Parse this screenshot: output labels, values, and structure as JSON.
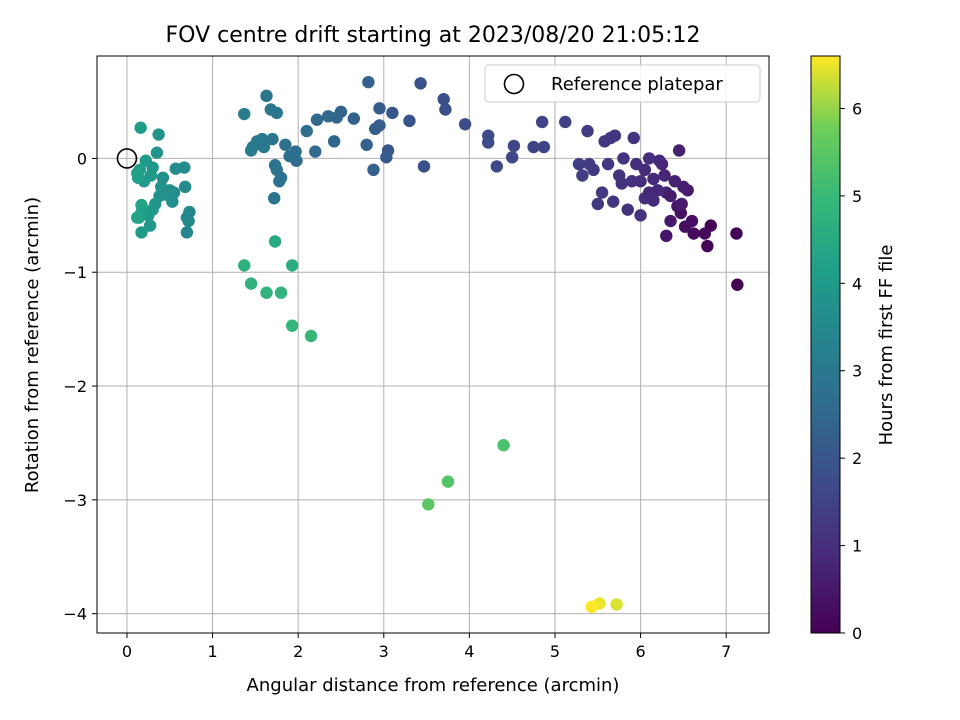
{
  "chart_data": {
    "type": "scatter",
    "title": "FOV centre drift starting at 2023/08/20 21:05:12",
    "xlabel": "Angular distance from reference (arcmin)",
    "ylabel": "Rotation from reference (arcmin)",
    "xlim": [
      -0.35,
      7.5
    ],
    "ylim": [
      -4.17,
      0.9
    ],
    "xticks": [
      0,
      1,
      2,
      3,
      4,
      5,
      6,
      7
    ],
    "yticks": [
      -4,
      -3,
      -2,
      -1,
      0
    ],
    "grid": true,
    "legend": {
      "position": "top-right",
      "entries": [
        "Reference platepar"
      ]
    },
    "reference_point": {
      "x": 0,
      "y": 0
    },
    "colorbar": {
      "label": "Hours from first FF file",
      "colormap": "viridis",
      "range": [
        0,
        6.6
      ],
      "ticks": [
        0,
        1,
        2,
        3,
        4,
        5,
        6
      ]
    },
    "series": [
      {
        "values": [
          [
            7.13,
            -1.11,
            0.0
          ],
          [
            7.12,
            -0.66,
            0.05
          ],
          [
            6.82,
            -0.59,
            0.08
          ],
          [
            6.78,
            -0.77,
            0.1
          ],
          [
            6.75,
            -0.66,
            0.15
          ],
          [
            6.62,
            -0.66,
            0.2
          ],
          [
            6.6,
            -0.55,
            0.25
          ],
          [
            6.52,
            -0.6,
            0.3
          ],
          [
            6.47,
            -0.48,
            0.35
          ],
          [
            6.43,
            -0.42,
            0.4
          ],
          [
            6.3,
            -0.68,
            0.45
          ],
          [
            6.35,
            -0.55,
            0.5
          ],
          [
            6.55,
            -0.28,
            0.55
          ],
          [
            6.5,
            -0.25,
            0.6
          ],
          [
            6.45,
            0.07,
            0.65
          ],
          [
            6.4,
            -0.2,
            0.7
          ],
          [
            6.3,
            -0.3,
            0.75
          ],
          [
            6.28,
            -0.15,
            0.78
          ],
          [
            6.25,
            -0.05,
            0.8
          ],
          [
            6.2,
            -0.28,
            0.85
          ],
          [
            6.15,
            -0.37,
            0.88
          ],
          [
            6.1,
            -0.3,
            0.9
          ],
          [
            6.05,
            -0.1,
            0.95
          ],
          [
            6.0,
            -0.2,
            1.0
          ],
          [
            5.95,
            -0.05,
            1.02
          ],
          [
            5.9,
            -0.2,
            1.05
          ],
          [
            5.85,
            -0.45,
            1.08
          ],
          [
            5.8,
            0.0,
            1.1
          ],
          [
            5.75,
            -0.15,
            1.12
          ],
          [
            5.7,
            0.2,
            1.15
          ],
          [
            5.65,
            0.18,
            1.18
          ],
          [
            5.62,
            -0.05,
            1.2
          ],
          [
            5.58,
            0.15,
            1.22
          ],
          [
            5.55,
            -0.3,
            1.25
          ],
          [
            5.5,
            -0.4,
            1.28
          ],
          [
            5.45,
            -0.1,
            1.3
          ],
          [
            5.4,
            -0.05,
            1.32
          ],
          [
            5.38,
            0.24,
            1.35
          ],
          [
            5.32,
            -0.15,
            1.38
          ],
          [
            5.28,
            -0.05,
            1.4
          ],
          [
            6.0,
            -0.5,
            1.05
          ],
          [
            5.92,
            0.18,
            1.12
          ],
          [
            6.1,
            0.0,
            1.0
          ],
          [
            6.22,
            -0.02,
            0.82
          ],
          [
            6.35,
            -0.33,
            0.6
          ],
          [
            5.78,
            -0.22,
            1.08
          ],
          [
            5.68,
            -0.38,
            1.15
          ],
          [
            6.05,
            -0.35,
            0.95
          ],
          [
            6.15,
            -0.18,
            0.88
          ],
          [
            6.48,
            -0.4,
            0.52
          ],
          [
            5.12,
            0.32,
            1.45
          ],
          [
            4.87,
            0.1,
            1.5
          ],
          [
            4.85,
            0.32,
            1.52
          ],
          [
            4.75,
            0.1,
            1.55
          ],
          [
            4.52,
            0.11,
            1.6
          ],
          [
            4.5,
            0.01,
            1.62
          ],
          [
            4.32,
            -0.07,
            1.65
          ],
          [
            4.22,
            0.2,
            1.68
          ],
          [
            4.22,
            0.14,
            1.7
          ],
          [
            3.95,
            0.3,
            1.75
          ],
          [
            3.72,
            0.43,
            1.8
          ],
          [
            3.7,
            0.52,
            1.82
          ],
          [
            3.47,
            -0.07,
            1.85
          ],
          [
            3.43,
            0.66,
            1.9
          ],
          [
            3.3,
            0.33,
            1.95
          ],
          [
            3.1,
            0.4,
            2.0
          ],
          [
            3.05,
            0.07,
            2.05
          ],
          [
            3.03,
            0.01,
            2.1
          ],
          [
            2.95,
            0.44,
            2.15
          ],
          [
            2.95,
            0.29,
            2.18
          ],
          [
            2.9,
            0.26,
            2.2
          ],
          [
            2.88,
            -0.1,
            2.25
          ],
          [
            2.82,
            0.67,
            2.28
          ],
          [
            2.8,
            0.12,
            2.3
          ],
          [
            2.65,
            0.35,
            2.35
          ],
          [
            2.5,
            0.41,
            2.4
          ],
          [
            2.45,
            0.36,
            2.42
          ],
          [
            2.42,
            0.15,
            2.45
          ],
          [
            2.35,
            0.37,
            2.48
          ],
          [
            2.22,
            0.34,
            2.5
          ],
          [
            2.2,
            0.06,
            2.55
          ],
          [
            2.1,
            0.24,
            2.6
          ],
          [
            1.98,
            -0.02,
            2.65
          ],
          [
            1.97,
            0.06,
            2.68
          ],
          [
            1.9,
            0.02,
            2.7
          ],
          [
            1.85,
            0.12,
            2.72
          ],
          [
            1.8,
            -0.17,
            2.75
          ],
          [
            1.78,
            -0.2,
            2.78
          ],
          [
            1.75,
            -0.1,
            2.8
          ],
          [
            1.73,
            -0.06,
            2.82
          ],
          [
            1.72,
            -0.35,
            2.85
          ],
          [
            1.75,
            0.4,
            2.88
          ],
          [
            1.7,
            0.17,
            2.9
          ],
          [
            1.68,
            0.43,
            2.92
          ],
          [
            1.63,
            0.55,
            2.95
          ],
          [
            1.6,
            0.1,
            2.98
          ],
          [
            1.58,
            0.17,
            3.0
          ],
          [
            1.52,
            0.15,
            3.02
          ],
          [
            1.47,
            0.1,
            3.05
          ],
          [
            1.45,
            0.07,
            3.08
          ],
          [
            1.37,
            0.39,
            3.12
          ],
          [
            0.7,
            -0.65,
            3.4
          ],
          [
            0.7,
            -0.52,
            3.45
          ],
          [
            0.73,
            -0.47,
            3.48
          ],
          [
            0.72,
            -0.55,
            3.5
          ],
          [
            0.68,
            -0.25,
            3.55
          ],
          [
            0.67,
            -0.08,
            3.58
          ],
          [
            0.57,
            -0.09,
            3.6
          ],
          [
            0.55,
            -0.3,
            3.62
          ],
          [
            0.53,
            -0.38,
            3.65
          ],
          [
            0.5,
            -0.28,
            3.68
          ],
          [
            0.47,
            -0.32,
            3.7
          ],
          [
            0.42,
            -0.17,
            3.72
          ],
          [
            0.4,
            -0.25,
            3.75
          ],
          [
            0.38,
            -0.33,
            3.78
          ],
          [
            0.37,
            0.21,
            3.8
          ],
          [
            0.35,
            0.05,
            3.82
          ],
          [
            0.33,
            -0.4,
            3.85
          ],
          [
            0.3,
            -0.45,
            3.88
          ],
          [
            0.3,
            -0.08,
            3.9
          ],
          [
            0.28,
            -0.15,
            3.92
          ],
          [
            0.27,
            -0.59,
            3.95
          ],
          [
            0.25,
            -0.5,
            3.98
          ],
          [
            0.22,
            -0.02,
            4.0
          ],
          [
            0.2,
            -0.2,
            4.02
          ],
          [
            0.18,
            -0.45,
            4.05
          ],
          [
            0.17,
            -0.65,
            4.08
          ],
          [
            0.16,
            0.27,
            4.1
          ],
          [
            0.15,
            -0.5,
            4.12
          ],
          [
            0.15,
            -0.1,
            4.15
          ],
          [
            0.13,
            -0.17,
            4.18
          ],
          [
            0.12,
            -0.13,
            4.2
          ],
          [
            0.14,
            -0.52,
            4.22
          ],
          [
            0.17,
            -0.41,
            4.25
          ],
          [
            0.12,
            -0.52,
            4.28
          ],
          [
            1.73,
            -0.73,
            4.5
          ],
          [
            1.93,
            -0.94,
            4.6
          ],
          [
            1.37,
            -0.94,
            4.7
          ],
          [
            1.45,
            -1.1,
            4.75
          ],
          [
            1.63,
            -1.18,
            4.8
          ],
          [
            1.8,
            -1.18,
            4.85
          ],
          [
            1.93,
            -1.47,
            4.9
          ],
          [
            2.15,
            -1.56,
            4.95
          ],
          [
            4.4,
            -2.52,
            5.3
          ],
          [
            3.75,
            -2.84,
            5.4
          ],
          [
            3.52,
            -3.04,
            5.5
          ],
          [
            5.72,
            -3.92,
            6.4
          ],
          [
            5.52,
            -3.91,
            6.5
          ],
          [
            5.43,
            -3.94,
            6.6
          ]
        ]
      }
    ]
  }
}
